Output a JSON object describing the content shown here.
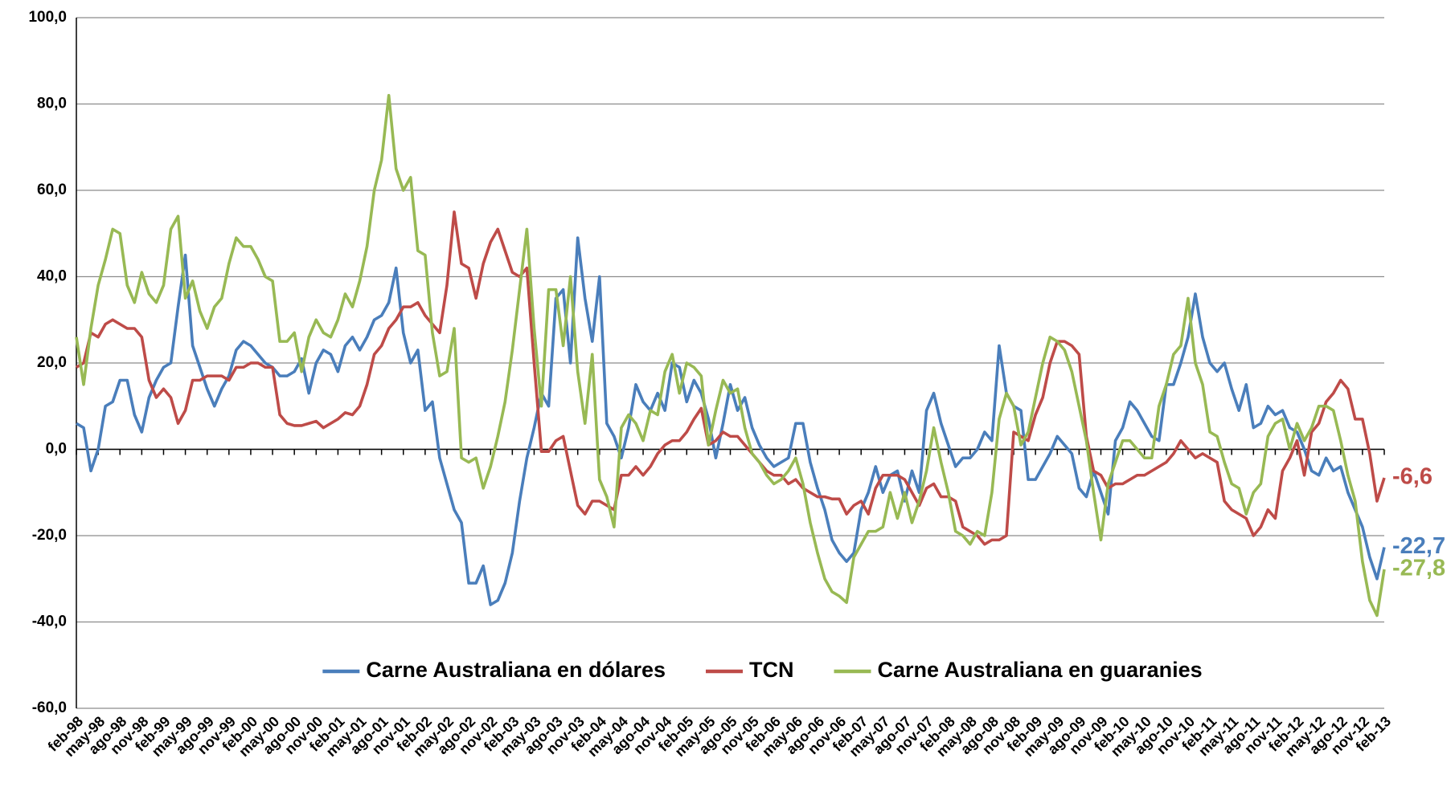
{
  "chart_data": {
    "type": "line",
    "categories": [
      "feb-98",
      null,
      null,
      "may-98",
      null,
      null,
      "ago-98",
      null,
      null,
      "nov-98",
      null,
      null,
      "feb-99",
      null,
      null,
      "may-99",
      null,
      null,
      "ago-99",
      null,
      null,
      "nov-99",
      null,
      null,
      "feb-00",
      null,
      null,
      "may-00",
      null,
      null,
      "ago-00",
      null,
      null,
      "nov-00",
      null,
      null,
      "feb-01",
      null,
      null,
      "may-01",
      null,
      null,
      "ago-01",
      null,
      null,
      "nov-01",
      null,
      null,
      "feb-02",
      null,
      null,
      "may-02",
      null,
      null,
      "ago-02",
      null,
      null,
      "nov-02",
      null,
      null,
      "feb-03",
      null,
      null,
      "may-03",
      null,
      null,
      "ago-03",
      null,
      null,
      "nov-03",
      null,
      null,
      "feb-04",
      null,
      null,
      "may-04",
      null,
      null,
      "ago-04",
      null,
      null,
      "nov-04",
      null,
      null,
      "feb-05",
      null,
      null,
      "may-05",
      null,
      null,
      "ago-05",
      null,
      null,
      "nov-05",
      null,
      null,
      "feb-06",
      null,
      null,
      "may-06",
      null,
      null,
      "ago-06",
      null,
      null,
      "nov-06",
      null,
      null,
      "feb-07",
      null,
      null,
      "may-07",
      null,
      null,
      "ago-07",
      null,
      null,
      "nov-07",
      null,
      null,
      "feb-08",
      null,
      null,
      "may-08",
      null,
      null,
      "ago-08",
      null,
      null,
      "nov-08",
      null,
      null,
      "feb-09",
      null,
      null,
      "may-09",
      null,
      null,
      "ago-09",
      null,
      null,
      "nov-09",
      null,
      null,
      "feb-10",
      null,
      null,
      "may-10",
      null,
      null,
      "ago-10",
      null,
      null,
      "nov-10",
      null,
      null,
      "feb-11",
      null,
      null,
      "may-11",
      null,
      null,
      "ago-11",
      null,
      null,
      "nov-11",
      null,
      null,
      "feb-12",
      null,
      null,
      "may-12",
      null,
      null,
      "ago-12",
      null,
      null,
      "nov-12",
      null,
      null,
      "feb-13"
    ],
    "series": [
      {
        "name": "Carne Australiana en dólares",
        "color": "#4a7ebb",
        "values": [
          6,
          5,
          -5,
          0,
          10,
          11,
          16,
          16,
          8,
          4,
          12,
          16,
          19,
          20,
          33,
          45,
          24,
          19,
          14,
          10,
          14,
          17,
          23,
          25,
          24,
          22,
          20,
          19,
          17,
          17,
          18,
          21,
          13,
          20,
          23,
          22,
          18,
          24,
          26,
          23,
          26,
          30,
          31,
          34,
          42,
          27,
          20,
          23,
          9,
          11,
          -2,
          -8,
          -14,
          -17,
          -31,
          -31,
          -27,
          -36,
          -35,
          -31,
          -24,
          -12,
          -2,
          5,
          13,
          10,
          35,
          37,
          20,
          49,
          35,
          25,
          40,
          6,
          3,
          -2,
          5,
          15,
          11,
          9,
          13,
          9,
          20,
          19,
          11,
          16,
          13,
          7,
          -2,
          6,
          15,
          9,
          12,
          5,
          1,
          -2,
          -4,
          -3,
          -2,
          6,
          6,
          -3,
          -9,
          -14,
          -21,
          -24,
          -26,
          -24,
          -14,
          -10,
          -4,
          -10,
          -6,
          -5,
          -12,
          -5,
          -10,
          9,
          13,
          6,
          1,
          -4,
          -2,
          -2,
          0,
          4,
          2,
          24,
          13,
          10,
          9,
          -7,
          -7,
          -4,
          -1,
          3,
          1,
          -1,
          -9,
          -11,
          -5,
          -10,
          -15,
          2,
          5,
          11,
          9,
          6,
          3,
          2,
          15,
          15,
          20,
          26,
          36,
          26,
          20,
          18,
          20,
          14,
          9,
          15,
          5,
          6,
          10,
          8,
          9,
          5,
          4,
          0,
          -5,
          -6,
          -2,
          -5,
          -4,
          -10,
          -14,
          -18,
          -25,
          -30,
          -22.7
        ],
        "value_labels": [
          null,
          null,
          null,
          null,
          null,
          null,
          null,
          null,
          null,
          null,
          null,
          null,
          null,
          null,
          null,
          null,
          null,
          null,
          null,
          null,
          null,
          null,
          null,
          null,
          null,
          null,
          null,
          null,
          null,
          null,
          null,
          null,
          null,
          null,
          null,
          null,
          null,
          null,
          null,
          null,
          null,
          null,
          null,
          null,
          null,
          null,
          null,
          null,
          null,
          null,
          null,
          null,
          null,
          null,
          null,
          null,
          null,
          null,
          null,
          null,
          null,
          null,
          null,
          null,
          null,
          null,
          null,
          null,
          null,
          null,
          null,
          null,
          null,
          null,
          null,
          null,
          null,
          null,
          null,
          null,
          null,
          null,
          null,
          null,
          null,
          null,
          null,
          null,
          null,
          null,
          null,
          null,
          null,
          null,
          null,
          null,
          null,
          null,
          null,
          null,
          null,
          null,
          null,
          null,
          null,
          null,
          null,
          null,
          null,
          null,
          null,
          null,
          null,
          null,
          null,
          null,
          null,
          null,
          null,
          null,
          null,
          null,
          null,
          null,
          null,
          null,
          null,
          null,
          null,
          null,
          null,
          null,
          null,
          null,
          null,
          null,
          null,
          null,
          null,
          null,
          null,
          null,
          null,
          null,
          null,
          null,
          null,
          null,
          null,
          null,
          null,
          null,
          null,
          null,
          null,
          null,
          null,
          null,
          null,
          null,
          null,
          null,
          null,
          null,
          null,
          null,
          null,
          null,
          null,
          null,
          null,
          null,
          null,
          null,
          null,
          null,
          null,
          null,
          null,
          null,
          "-22,7"
        ]
      },
      {
        "name": "TCN",
        "color": "#be4b48",
        "values": [
          19,
          20,
          27,
          26,
          29,
          30,
          29,
          28,
          28,
          26,
          16,
          12,
          14,
          12,
          6,
          9,
          16,
          16,
          17,
          17,
          17,
          16,
          19,
          19,
          20,
          20,
          19,
          19,
          8,
          6,
          5.5,
          5.5,
          6,
          6.5,
          5,
          6,
          7,
          8.5,
          8,
          10,
          15,
          22,
          24,
          28,
          30,
          33,
          33,
          34,
          31,
          29,
          27,
          38,
          55,
          43,
          42,
          35,
          43,
          48,
          51,
          46,
          41,
          40,
          42,
          20,
          -0.5,
          -0.5,
          2,
          3,
          -5,
          -13,
          -15,
          -12,
          -12,
          -13,
          -14,
          -6,
          -6,
          -4,
          -6,
          -4,
          -1,
          1,
          2,
          2,
          4,
          7,
          9.5,
          1,
          2,
          4,
          3,
          3,
          1,
          -1,
          -3,
          -5,
          -6,
          -6,
          -8,
          -7,
          -9,
          -10,
          -11,
          -11,
          -11.5,
          -11.5,
          -15,
          -13,
          -12,
          -15,
          -9,
          -6,
          -6,
          -6,
          -7,
          -10,
          -13,
          -9,
          -8,
          -11,
          -11,
          -12,
          -18,
          -19,
          -20,
          -22,
          -21,
          -21,
          -20,
          4,
          3,
          2,
          8,
          12,
          20,
          25,
          25,
          24,
          22,
          3,
          -5,
          -6,
          -9,
          -8,
          -8,
          -7,
          -6,
          -6,
          -5,
          -4,
          -3,
          -1,
          2,
          0,
          -2,
          -1,
          -2,
          -3,
          -12,
          -14,
          -15,
          -16,
          -20,
          -18,
          -14,
          -16,
          -5,
          -2,
          2,
          -6,
          4,
          6,
          11,
          13,
          16,
          14,
          7,
          7,
          -1,
          -12,
          -6.6
        ],
        "value_labels": [
          null,
          null,
          null,
          null,
          null,
          null,
          null,
          null,
          null,
          null,
          null,
          null,
          null,
          null,
          null,
          null,
          null,
          null,
          null,
          null,
          null,
          null,
          null,
          null,
          null,
          null,
          null,
          null,
          null,
          null,
          null,
          null,
          null,
          null,
          null,
          null,
          null,
          null,
          null,
          null,
          null,
          null,
          null,
          null,
          null,
          null,
          null,
          null,
          null,
          null,
          null,
          null,
          null,
          null,
          null,
          null,
          null,
          null,
          null,
          null,
          null,
          null,
          null,
          null,
          null,
          null,
          null,
          null,
          null,
          null,
          null,
          null,
          null,
          null,
          null,
          null,
          null,
          null,
          null,
          null,
          null,
          null,
          null,
          null,
          null,
          null,
          null,
          null,
          null,
          null,
          null,
          null,
          null,
          null,
          null,
          null,
          null,
          null,
          null,
          null,
          null,
          null,
          null,
          null,
          null,
          null,
          null,
          null,
          null,
          null,
          null,
          null,
          null,
          null,
          null,
          null,
          null,
          null,
          null,
          null,
          null,
          null,
          null,
          null,
          null,
          null,
          null,
          null,
          null,
          null,
          null,
          null,
          null,
          null,
          null,
          null,
          null,
          null,
          null,
          null,
          null,
          null,
          null,
          null,
          null,
          null,
          null,
          null,
          null,
          null,
          null,
          null,
          null,
          null,
          null,
          null,
          null,
          null,
          null,
          null,
          null,
          null,
          null,
          null,
          null,
          null,
          null,
          null,
          null,
          null,
          null,
          null,
          null,
          null,
          null,
          null,
          null,
          null,
          null,
          null,
          "-6,6"
        ]
      },
      {
        "name": "Carne Australiana en guaranies",
        "color": "#98b954",
        "values": [
          26,
          15,
          28,
          38,
          44,
          51,
          50,
          38,
          34,
          41,
          36,
          34,
          38,
          51,
          54,
          35,
          39,
          32,
          28,
          33,
          35,
          43,
          49,
          47,
          47,
          44,
          40,
          39,
          25,
          25,
          27,
          18,
          26,
          30,
          27,
          26,
          30,
          36,
          33,
          39,
          47,
          60,
          67,
          82,
          65,
          60,
          63,
          46,
          45,
          27,
          17,
          18,
          28,
          -2,
          -3,
          -2,
          -9,
          -4,
          3,
          11,
          23,
          37,
          51,
          28,
          10,
          37,
          37,
          24,
          40,
          18,
          6,
          22,
          -7,
          -11,
          -18,
          5,
          8,
          6,
          2,
          9,
          8,
          18,
          22,
          13,
          20,
          19,
          17,
          1,
          9,
          16,
          13,
          14,
          5,
          -1,
          -3,
          -6,
          -8,
          -7,
          -5,
          -2,
          -8,
          -17,
          -24,
          -30,
          -33,
          -34,
          -35.5,
          -25,
          -22,
          -19,
          -19,
          -18,
          -10,
          -16,
          -10,
          -17,
          -12,
          -5,
          5,
          -3,
          -10,
          -19,
          -20,
          -22,
          -19,
          -20,
          -10,
          7,
          13,
          10,
          1,
          4,
          12,
          20,
          26,
          25,
          23,
          18,
          10,
          2,
          -10,
          -21,
          -8,
          -3,
          2,
          2,
          0,
          -2,
          -2,
          10,
          15,
          22,
          24,
          35,
          20,
          15,
          4,
          3,
          -3,
          -8,
          -9,
          -15,
          -10,
          -8,
          3,
          6,
          7,
          0,
          6,
          2,
          5,
          10,
          10,
          9,
          2,
          -6,
          -12,
          -26,
          -35,
          -38.5,
          -27.8
        ],
        "value_labels": [
          null,
          null,
          null,
          null,
          null,
          null,
          null,
          null,
          null,
          null,
          null,
          null,
          null,
          null,
          null,
          null,
          null,
          null,
          null,
          null,
          null,
          null,
          null,
          null,
          null,
          null,
          null,
          null,
          null,
          null,
          null,
          null,
          null,
          null,
          null,
          null,
          null,
          null,
          null,
          null,
          null,
          null,
          null,
          null,
          null,
          null,
          null,
          null,
          null,
          null,
          null,
          null,
          null,
          null,
          null,
          null,
          null,
          null,
          null,
          null,
          null,
          null,
          null,
          null,
          null,
          null,
          null,
          null,
          null,
          null,
          null,
          null,
          null,
          null,
          null,
          null,
          null,
          null,
          null,
          null,
          null,
          null,
          null,
          null,
          null,
          null,
          null,
          null,
          null,
          null,
          null,
          null,
          null,
          null,
          null,
          null,
          null,
          null,
          null,
          null,
          null,
          null,
          null,
          null,
          null,
          null,
          null,
          null,
          null,
          null,
          null,
          null,
          null,
          null,
          null,
          null,
          null,
          null,
          null,
          null,
          null,
          null,
          null,
          null,
          null,
          null,
          null,
          null,
          null,
          null,
          null,
          null,
          null,
          null,
          null,
          null,
          null,
          null,
          null,
          null,
          null,
          null,
          null,
          null,
          null,
          null,
          null,
          null,
          null,
          null,
          null,
          null,
          null,
          null,
          null,
          null,
          null,
          null,
          null,
          null,
          null,
          null,
          null,
          null,
          null,
          null,
          null,
          null,
          null,
          null,
          null,
          null,
          null,
          null,
          null,
          null,
          null,
          null,
          null,
          null,
          "-27,8"
        ]
      }
    ],
    "ylim": [
      -60,
      100
    ],
    "yticks": [
      {
        "value": -60,
        "label": "-60,0"
      },
      {
        "value": -40,
        "label": "-40,0"
      },
      {
        "value": -20,
        "label": "-20,0"
      },
      {
        "value": 0,
        "label": "0,0"
      },
      {
        "value": 20,
        "label": "20,0"
      },
      {
        "value": 40,
        "label": "40,0"
      },
      {
        "value": 60,
        "label": "60,0"
      },
      {
        "value": 80,
        "label": "80,0"
      },
      {
        "value": 100,
        "label": "100,0"
      }
    ],
    "grid": true,
    "legend": "bottom"
  }
}
